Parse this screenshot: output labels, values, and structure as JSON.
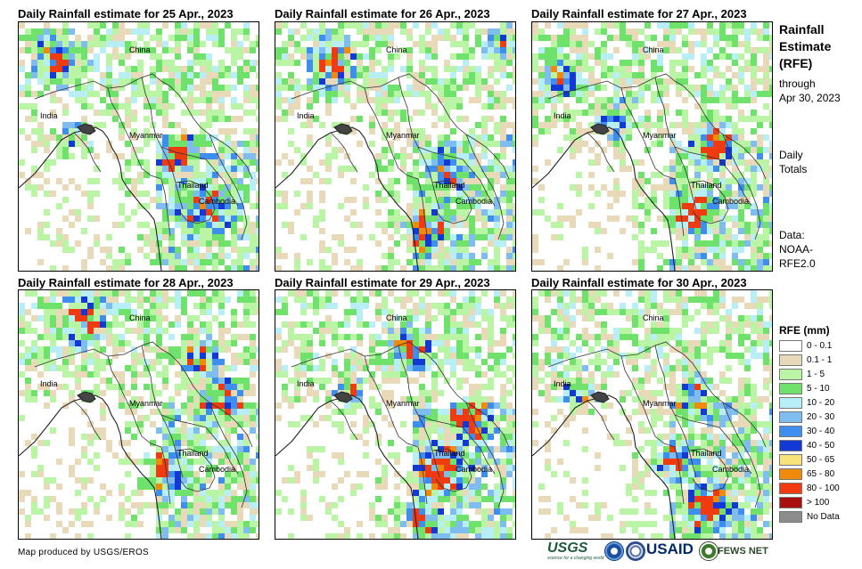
{
  "panels": [
    {
      "title": "Daily Rainfall estimate for 25 Apr., 2023"
    },
    {
      "title": "Daily Rainfall estimate for 26 Apr., 2023"
    },
    {
      "title": "Daily Rainfall estimate for 27 Apr., 2023"
    },
    {
      "title": "Daily Rainfall estimate for 28 Apr., 2023"
    },
    {
      "title": "Daily Rainfall estimate for 29 Apr., 2023"
    },
    {
      "title": "Daily Rainfall estimate for 30 Apr., 2023"
    }
  ],
  "places": {
    "china": "China",
    "india": "India",
    "myanmar": "Myanmar",
    "thailand": "Thailand",
    "cambodia": "Cambodia"
  },
  "sidebar": {
    "title_line1": "Rainfall",
    "title_line2": "Estimate",
    "title_line3": "(RFE)",
    "through_line1": "through",
    "through_line2": "Apr 30, 2023",
    "totals_line1": "Daily",
    "totals_line2": "Totals",
    "source_line1": "Data:",
    "source_line2": "NOAA-",
    "source_line3": "RFE2.0"
  },
  "legend": {
    "title": "RFE (mm)",
    "items": [
      {
        "label": "0 - 0.1",
        "color": "#ffffff"
      },
      {
        "label": "0.1 - 1",
        "color": "#e8d9b8"
      },
      {
        "label": "1 - 5",
        "color": "#b9f5a4"
      },
      {
        "label": "5 - 10",
        "color": "#6ee26b"
      },
      {
        "label": "10 - 20",
        "color": "#b8eef5"
      },
      {
        "label": "20 - 30",
        "color": "#7fbdf0"
      },
      {
        "label": "30 - 40",
        "color": "#3e8ef0"
      },
      {
        "label": "40 - 50",
        "color": "#1238d6"
      },
      {
        "label": "50 - 65",
        "color": "#f8e27a"
      },
      {
        "label": "65 - 80",
        "color": "#f08a0a"
      },
      {
        "label": "80 - 100",
        "color": "#f03a10"
      },
      {
        "label": "> 100",
        "color": "#a81010"
      },
      {
        "label": "No Data",
        "color": "#8c8c8c"
      }
    ]
  },
  "footer": {
    "credit": "Map produced by USGS/EROS",
    "usgs": "USGS",
    "usgs_tagline": "science for a changing world",
    "usaid": "USAID",
    "fews": "FEWS NET"
  }
}
